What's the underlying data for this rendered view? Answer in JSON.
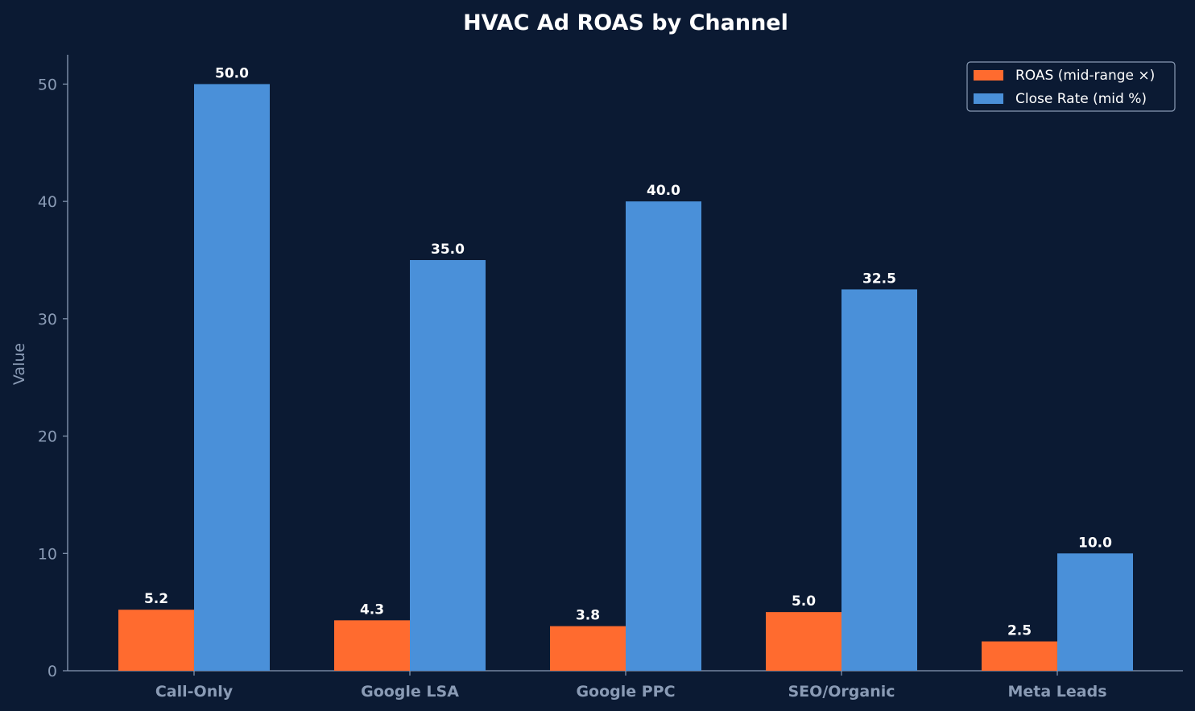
{
  "chart_data": {
    "type": "bar",
    "title": "HVAC Ad ROAS by Channel",
    "ylabel": "Value",
    "xlabel": "",
    "ylim": [
      0,
      52.5
    ],
    "yticks": [
      0,
      10,
      20,
      30,
      40,
      50
    ],
    "categories": [
      "Call-Only",
      "Google LSA",
      "Google PPC",
      "SEO/Organic",
      "Meta Leads"
    ],
    "series": [
      {
        "name": "ROAS (mid-range ×)",
        "color": "#ff6b2f",
        "values": [
          5.2,
          4.3,
          3.8,
          5.0,
          2.5
        ]
      },
      {
        "name": "Close Rate (mid %)",
        "color": "#4a90d9",
        "values": [
          50.0,
          35.0,
          40.0,
          32.5,
          10.0
        ]
      }
    ],
    "legend": "top-right",
    "grid": false,
    "data_labels": true
  }
}
